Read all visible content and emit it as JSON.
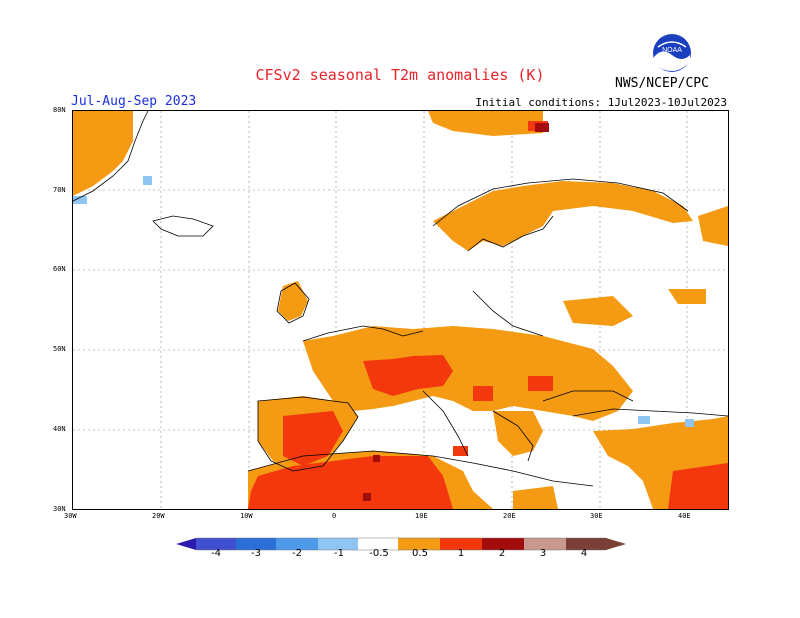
{
  "header": {
    "title": "CFSv2  seasonal  T2m  anomalies  (K)",
    "period": "Jul-Aug-Sep 2023",
    "initial_conditions": "Initial conditions:  1Jul2023-10Jul2023",
    "agency": "NWS/NCEP/CPC",
    "logo_text": "NOAA"
  },
  "axes": {
    "lat_labels": [
      "80N",
      "70N",
      "60N",
      "50N",
      "40N",
      "30N"
    ],
    "lon_labels": [
      "30W",
      "20W",
      "10W",
      "0",
      "10E",
      "20E",
      "30E",
      "40E"
    ]
  },
  "legend": {
    "labels": [
      "-4",
      "-3",
      "-2",
      "-1",
      "-0.5",
      "0.5",
      "1",
      "2",
      "3",
      "4"
    ],
    "colors": [
      "#2b1bb0",
      "#3f4fd0",
      "#2a6fd6",
      "#4e9ae8",
      "#8ec5f3",
      "#ffffff",
      "#f59a13",
      "#f2380c",
      "#a30c0c",
      "#c89a8e",
      "#7b3f35"
    ]
  },
  "colors": {
    "anom_0_5_1": "#f59a13",
    "anom_1_2": "#f2380c",
    "anom_2_3": "#a30c0c",
    "anom_neg_0_5_1": "#8ec5f3",
    "title": "#e8222a",
    "period": "#1a2de0"
  }
}
